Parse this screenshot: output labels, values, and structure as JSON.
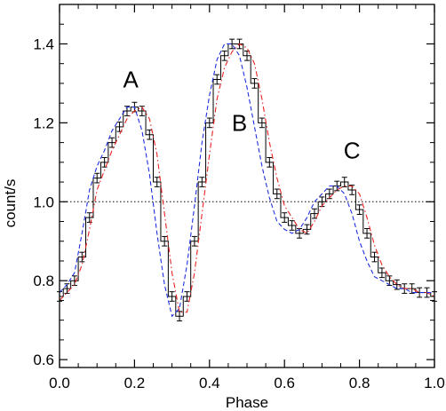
{
  "chart_data": {
    "type": "line",
    "xlabel": "Phase",
    "ylabel": "count/s",
    "xlim": [
      0.0,
      1.0
    ],
    "ylim": [
      0.58,
      1.5
    ],
    "x_ticks": [
      {
        "value": 0.0,
        "label": "0.0"
      },
      {
        "value": 0.2,
        "label": "0.2"
      },
      {
        "value": 0.4,
        "label": "0.4"
      },
      {
        "value": 0.6,
        "label": "0.6"
      },
      {
        "value": 0.8,
        "label": "0.8"
      },
      {
        "value": 1.0,
        "label": "1.0"
      }
    ],
    "y_ticks": [
      {
        "value": 0.6,
        "label": "0.6"
      },
      {
        "value": 0.8,
        "label": "0.8"
      },
      {
        "value": 1.0,
        "label": "1.0"
      },
      {
        "value": 1.2,
        "label": "1.2"
      },
      {
        "value": 1.4,
        "label": "1.4"
      }
    ],
    "reference_line": {
      "y": 1.0,
      "style": "dotted",
      "color": "#000000"
    },
    "annotations": [
      {
        "text": "A",
        "x": 0.19,
        "y": 1.29
      },
      {
        "text": "B",
        "x": 0.48,
        "y": 1.18
      },
      {
        "text": "C",
        "x": 0.78,
        "y": 1.11
      }
    ],
    "series": [
      {
        "style": "histogram-with-errorbars",
        "color": "#000000",
        "x": [
          0.0,
          0.02,
          0.04,
          0.06,
          0.08,
          0.1,
          0.12,
          0.14,
          0.16,
          0.18,
          0.2,
          0.22,
          0.24,
          0.26,
          0.28,
          0.3,
          0.32,
          0.34,
          0.36,
          0.38,
          0.4,
          0.42,
          0.44,
          0.46,
          0.48,
          0.5,
          0.52,
          0.54,
          0.56,
          0.58,
          0.6,
          0.62,
          0.64,
          0.66,
          0.68,
          0.7,
          0.72,
          0.74,
          0.76,
          0.78,
          0.8,
          0.82,
          0.84,
          0.86,
          0.88,
          0.9,
          0.92,
          0.94,
          0.96,
          0.98,
          1.0
        ],
        "y": [
          0.76,
          0.78,
          0.8,
          0.86,
          0.96,
          1.06,
          1.1,
          1.15,
          1.19,
          1.23,
          1.24,
          1.23,
          1.17,
          1.05,
          0.9,
          0.76,
          0.71,
          0.76,
          0.9,
          1.05,
          1.2,
          1.31,
          1.37,
          1.4,
          1.4,
          1.37,
          1.3,
          1.2,
          1.1,
          1.02,
          0.96,
          0.94,
          0.92,
          0.93,
          0.97,
          1.0,
          1.02,
          1.04,
          1.05,
          1.03,
          0.98,
          0.92,
          0.86,
          0.82,
          0.8,
          0.79,
          0.78,
          0.78,
          0.77,
          0.77,
          0.76
        ],
        "error": 0.012
      },
      {
        "style": "dash-dot",
        "color": "#e8231f",
        "x": [
          0.0,
          0.02,
          0.04,
          0.06,
          0.08,
          0.1,
          0.12,
          0.14,
          0.16,
          0.18,
          0.2,
          0.22,
          0.24,
          0.26,
          0.28,
          0.3,
          0.32,
          0.34,
          0.36,
          0.38,
          0.4,
          0.42,
          0.44,
          0.46,
          0.48,
          0.5,
          0.52,
          0.54,
          0.56,
          0.58,
          0.6,
          0.62,
          0.64,
          0.66,
          0.68,
          0.7,
          0.72,
          0.74,
          0.76,
          0.78,
          0.8,
          0.82,
          0.84,
          0.86,
          0.88,
          0.9,
          0.92,
          0.94,
          0.96,
          0.98,
          1.0
        ],
        "y": [
          0.75,
          0.77,
          0.79,
          0.84,
          0.93,
          1.03,
          1.08,
          1.13,
          1.17,
          1.21,
          1.23,
          1.24,
          1.21,
          1.12,
          0.97,
          0.82,
          0.72,
          0.72,
          0.82,
          0.97,
          1.12,
          1.26,
          1.34,
          1.38,
          1.4,
          1.39,
          1.35,
          1.26,
          1.15,
          1.06,
          0.99,
          0.96,
          0.93,
          0.92,
          0.95,
          0.99,
          1.01,
          1.03,
          1.04,
          1.04,
          1.02,
          0.96,
          0.89,
          0.84,
          0.81,
          0.79,
          0.78,
          0.78,
          0.77,
          0.77,
          0.76
        ]
      },
      {
        "style": "dashed",
        "color": "#1f2fe0",
        "x": [
          0.0,
          0.02,
          0.04,
          0.06,
          0.08,
          0.1,
          0.12,
          0.14,
          0.16,
          0.18,
          0.2,
          0.22,
          0.24,
          0.26,
          0.28,
          0.3,
          0.32,
          0.34,
          0.36,
          0.38,
          0.4,
          0.42,
          0.44,
          0.46,
          0.48,
          0.5,
          0.52,
          0.54,
          0.56,
          0.58,
          0.6,
          0.62,
          0.64,
          0.66,
          0.68,
          0.7,
          0.72,
          0.74,
          0.76,
          0.78,
          0.8,
          0.82,
          0.84,
          0.86,
          0.88,
          0.9,
          0.92,
          0.94,
          0.96,
          0.98,
          1.0
        ],
        "y": [
          0.77,
          0.79,
          0.82,
          0.92,
          1.03,
          1.09,
          1.13,
          1.18,
          1.21,
          1.24,
          1.24,
          1.18,
          1.07,
          0.92,
          0.79,
          0.71,
          0.73,
          0.84,
          0.99,
          1.15,
          1.27,
          1.36,
          1.4,
          1.4,
          1.37,
          1.29,
          1.19,
          1.09,
          1.01,
          0.95,
          0.93,
          0.92,
          0.93,
          0.96,
          1.0,
          1.02,
          1.04,
          1.04,
          1.02,
          0.97,
          0.9,
          0.85,
          0.81,
          0.8,
          0.79,
          0.78,
          0.78,
          0.77,
          0.77,
          0.77,
          0.77
        ]
      }
    ]
  }
}
